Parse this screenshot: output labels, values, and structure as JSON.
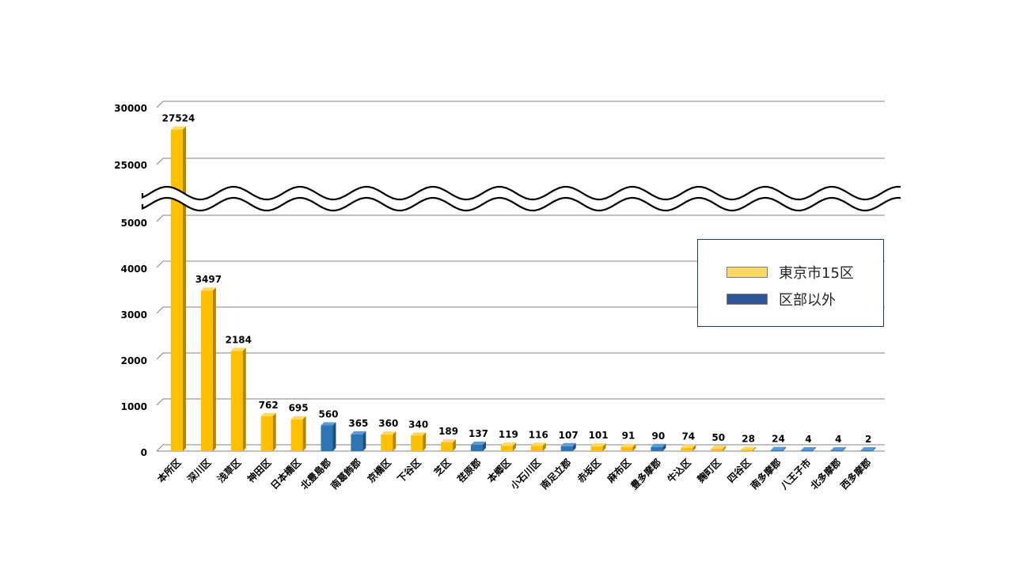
{
  "colors": {
    "tokyo15": "#ffc000",
    "tokyo15_side": "#b38600",
    "tokyo15_top": "#ffd966",
    "outside": "#2e75b6",
    "outside_side": "#1f4e79",
    "outside_top": "#5b9bd5",
    "legend_tokyo15": "#ffd966",
    "legend_outside": "#2f5597",
    "grid": "#808080"
  },
  "legend": {
    "tokyo15": "東京市15区",
    "outside": "区部以外"
  },
  "chart_data": {
    "type": "bar",
    "title": "",
    "xlabel": "",
    "ylabel": "",
    "broken_axis": true,
    "ylim_lower": [
      0,
      5000
    ],
    "ylim_upper": [
      25000,
      30000
    ],
    "lower_ticks": [
      "0",
      "1000",
      "2000",
      "3000",
      "4000",
      "5000"
    ],
    "upper_ticks": [
      "25000",
      "30000"
    ],
    "legend_position": "right",
    "grid": true,
    "categories": [
      "本所区",
      "深川区",
      "浅草区",
      "神田区",
      "日本橋区",
      "北豊島郡",
      "南葛飾郡",
      "京橋区",
      "下谷区",
      "芝区",
      "荏原郡",
      "本郷区",
      "小石川区",
      "南足立郡",
      "赤坂区",
      "麻布区",
      "豊多摩郡",
      "牛込区",
      "麹町区",
      "四谷区",
      "南多摩郡",
      "八王子市",
      "北多摩郡",
      "西多摩郡"
    ],
    "values": [
      27524,
      3497,
      2184,
      762,
      695,
      560,
      365,
      360,
      340,
      189,
      137,
      119,
      116,
      107,
      101,
      91,
      90,
      74,
      50,
      28,
      24,
      4,
      4,
      2
    ],
    "groups": [
      "tokyo15",
      "tokyo15",
      "tokyo15",
      "tokyo15",
      "tokyo15",
      "outside",
      "outside",
      "tokyo15",
      "tokyo15",
      "tokyo15",
      "outside",
      "tokyo15",
      "tokyo15",
      "outside",
      "tokyo15",
      "tokyo15",
      "outside",
      "tokyo15",
      "tokyo15",
      "tokyo15",
      "outside",
      "outside",
      "outside",
      "outside"
    ]
  }
}
